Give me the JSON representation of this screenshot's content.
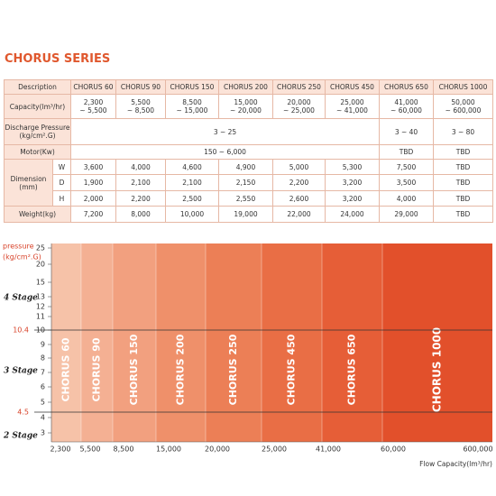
{
  "title": "CHORUS SERIES",
  "table": {
    "header": [
      "Description",
      "CHORUS 60",
      "CHORUS 90",
      "CHORUS 150",
      "CHORUS 200",
      "CHORUS 250",
      "CHORUS 450",
      "CHORUS 650",
      "CHORUS 1000"
    ],
    "capacity": {
      "label": "Capacity(lm³/hr)",
      "values": [
        [
          "2,300",
          "~ 5,500"
        ],
        [
          "5,500",
          "~ 8,500"
        ],
        [
          "8,500",
          "~ 15,000"
        ],
        [
          "15,000",
          "~ 20,000"
        ],
        [
          "20,000",
          "~ 25,000"
        ],
        [
          "25,000",
          "~ 41,000"
        ],
        [
          "41,000",
          "~ 60,000"
        ],
        [
          "50,000",
          "~ 600,000"
        ]
      ]
    },
    "discharge": {
      "label": "Discharge Pressure (kg/cm².G)",
      "cells": [
        "3 ~ 25",
        "3 ~ 40",
        "3 ~ 80"
      ]
    },
    "motor": {
      "label": "Motor(Kw)",
      "cells": [
        "150 ~ 6,000",
        "TBD",
        "TBD"
      ]
    },
    "dimension": {
      "label": "Dimension (mm)",
      "rows": [
        {
          "axis": "W",
          "values": [
            "3,600",
            "4,000",
            "4,600",
            "4,900",
            "5,000",
            "5,300",
            "7,500",
            "TBD"
          ]
        },
        {
          "axis": "D",
          "values": [
            "1,900",
            "2,100",
            "2,100",
            "2,150",
            "2,200",
            "3,200",
            "3,500",
            "TBD"
          ]
        },
        {
          "axis": "H",
          "values": [
            "2,000",
            "2,200",
            "2,500",
            "2,550",
            "2,600",
            "3,200",
            "4,000",
            "TBD"
          ]
        }
      ]
    },
    "weight": {
      "label": "Weight(kg)",
      "values": [
        "7,200",
        "8,000",
        "10,000",
        "19,000",
        "22,000",
        "24,000",
        "29,000",
        "TBD"
      ]
    }
  },
  "chart": {
    "pressure_label": [
      "pressure",
      "(kg/cm².G)"
    ],
    "pressure_ticks": [
      "25",
      "20",
      "15",
      "13",
      "12",
      "11",
      "10",
      "9",
      "8",
      "7",
      "6",
      "5",
      "4",
      "3"
    ],
    "stage_limits": [
      "10.4",
      "4.5"
    ],
    "stages": [
      "4 Stage",
      "3 Stage",
      "2 Stage"
    ],
    "models": [
      "CHORUS 60",
      "CHORUS 90",
      "CHORUS 150",
      "CHORUS 200",
      "CHORUS 250",
      "CHORUS 450",
      "CHORUS 650",
      "CHORUS 1000"
    ],
    "flow_ticks": [
      "2,300",
      "5,500",
      "8,500",
      "15,000",
      "20,000",
      "25,000",
      "41,000",
      "60,000",
      "600,000"
    ],
    "flow_label": "Flow Capacity(lm³/hr)"
  }
}
